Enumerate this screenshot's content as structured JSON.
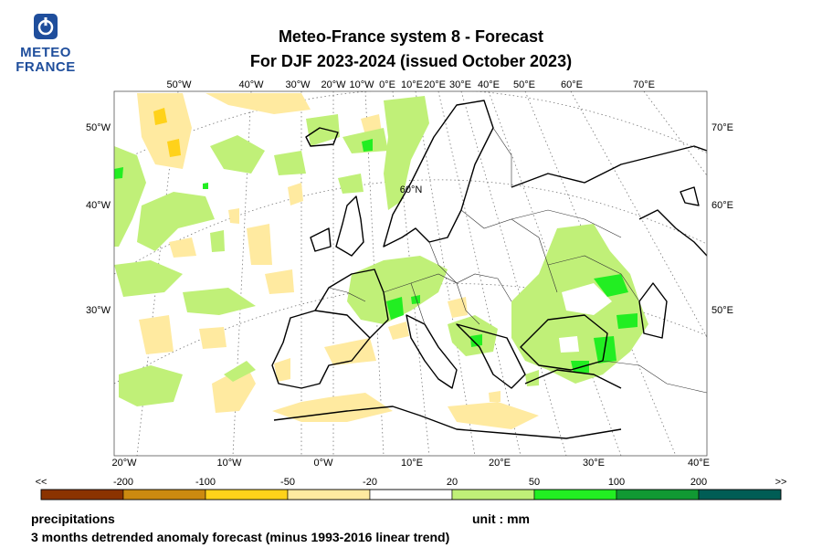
{
  "logo": {
    "line1": "METEO",
    "line2": "FRANCE",
    "icon": "meteo-france-logo-icon",
    "color": "#1f4e9c"
  },
  "title": {
    "line1": "Meteo-France system 8  -  Forecast",
    "line2": "For DJF 2023-2024      (issued October 2023)"
  },
  "map": {
    "top_lon_labels": [
      "50°W",
      "40°W",
      "30°W",
      "20°W",
      "10°W",
      "0°E",
      "10°E",
      "20°E",
      "30°E",
      "40°E",
      "50°E",
      "60°E",
      "70°E"
    ],
    "left_lon_labels": [
      "50°W",
      "40°W",
      "30°W"
    ],
    "right_lon_labels": [
      "70°E",
      "60°E",
      "50°E"
    ],
    "bottom_lon_labels": [
      "20°W",
      "10°W",
      "0°W",
      "10°E",
      "20°E",
      "30°E",
      "40°E"
    ],
    "lat_label": "60°N"
  },
  "colorbar": {
    "ticks": [
      "<<",
      "-200",
      "-100",
      "-50",
      "-20",
      "20",
      "50",
      "100",
      "200",
      ">>"
    ],
    "colors": [
      "#8b3300",
      "#cc8a10",
      "#ffd21a",
      "#ffeaa0",
      "#ffffff",
      "#c0f078",
      "#22ee22",
      "#119933",
      "#005d55"
    ]
  },
  "footer": {
    "variable": "precipitations",
    "unit": "unit : mm",
    "description": "3 months detrended anomaly forecast (minus 1993-2016 linear trend)"
  }
}
